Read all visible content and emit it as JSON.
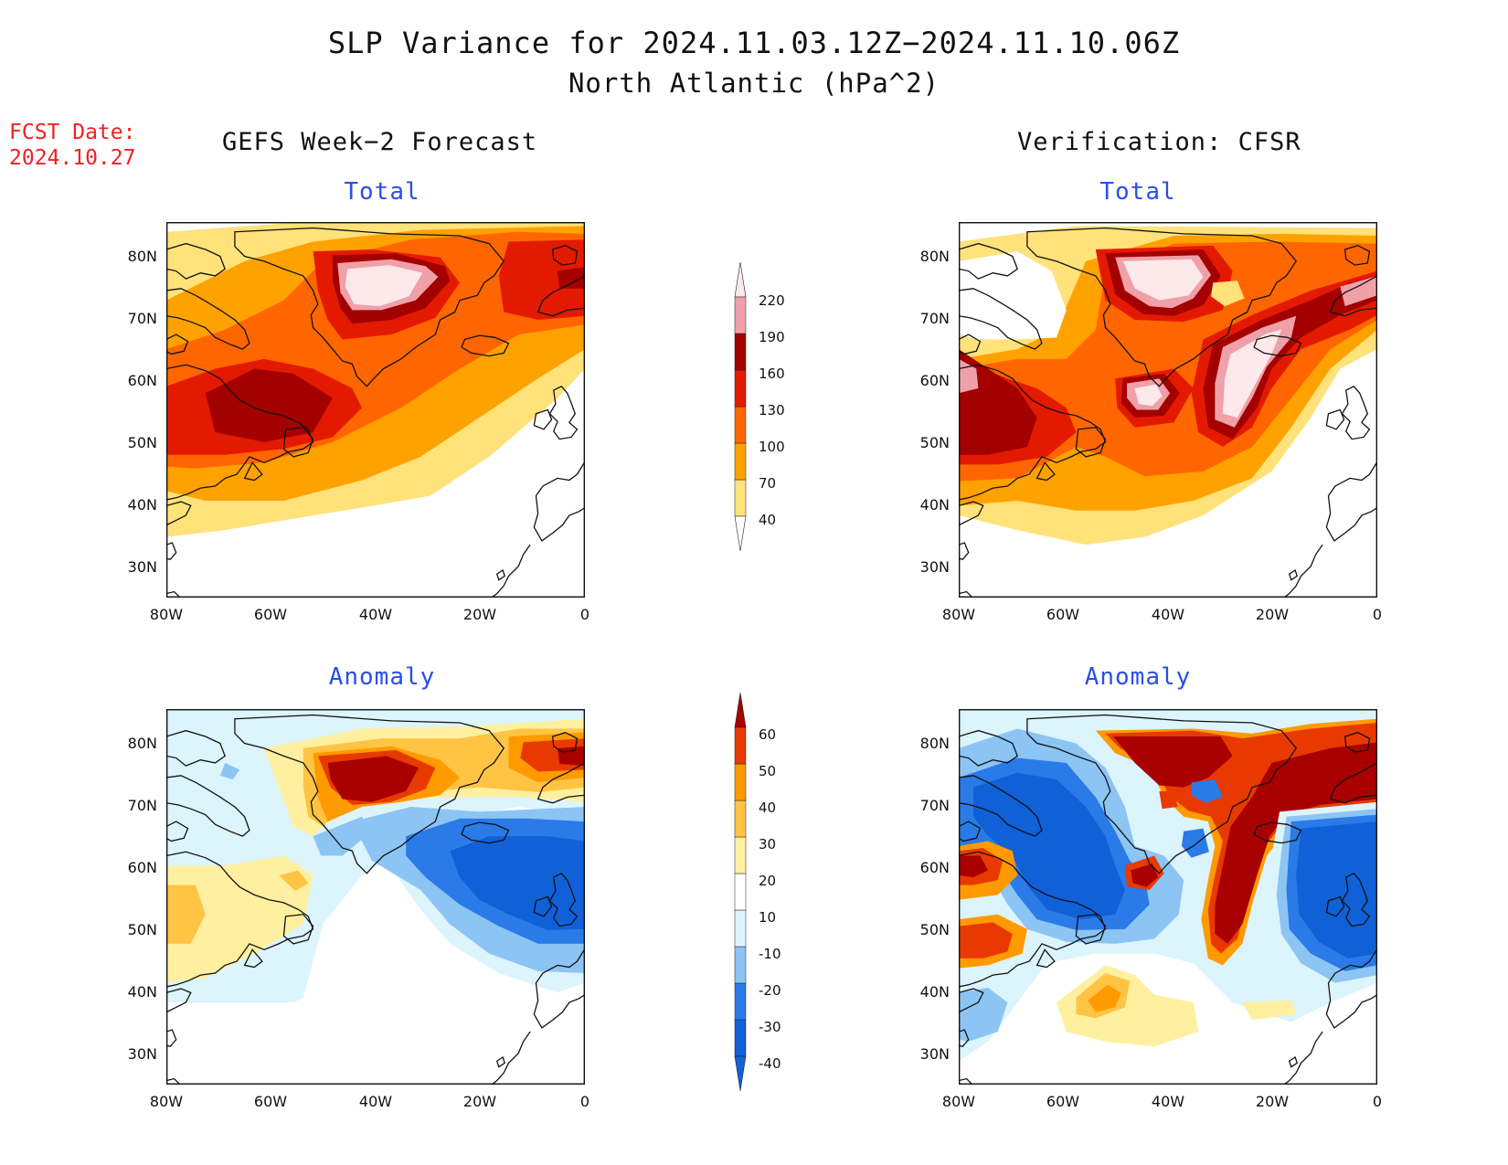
{
  "title": {
    "line1": "SLP Variance for 2024.11.03.12Z−2024.11.10.06Z",
    "line2": "North Atlantic (hPa^2)"
  },
  "fcst_date": {
    "label": "FCST Date:",
    "value": "2024.10.27"
  },
  "columns": {
    "left": "GEFS Week−2 Forecast",
    "right": "Verification: CFSR"
  },
  "panels": {
    "top_left": "Total",
    "top_right": "Total",
    "bottom_left": "Anomaly",
    "bottom_right": "Anomaly"
  },
  "axes": {
    "lat_labels": [
      "80N",
      "70N",
      "60N",
      "50N",
      "40N",
      "30N"
    ],
    "lon_labels": [
      "80W",
      "60W",
      "40W",
      "20W",
      "0"
    ]
  },
  "colorbars": {
    "total": {
      "levels": [
        "40",
        "70",
        "100",
        "130",
        "160",
        "190",
        "220"
      ],
      "colors": [
        "#ffe27a",
        "#ffa200",
        "#ff6600",
        "#e41a00",
        "#a30000",
        "#f0a0a8",
        "#fde8ea"
      ]
    },
    "anomaly": {
      "levels": [
        "-40",
        "-30",
        "-20",
        "-10",
        "10",
        "20",
        "30",
        "40",
        "50",
        "60"
      ],
      "colors": [
        "#1060d8",
        "#2a7ae8",
        "#8cc4f4",
        "#dcf4fc",
        "#ffffff",
        "#fff0a0",
        "#ffc444",
        "#ff9a00",
        "#e83a00",
        "#a80000"
      ]
    }
  }
}
